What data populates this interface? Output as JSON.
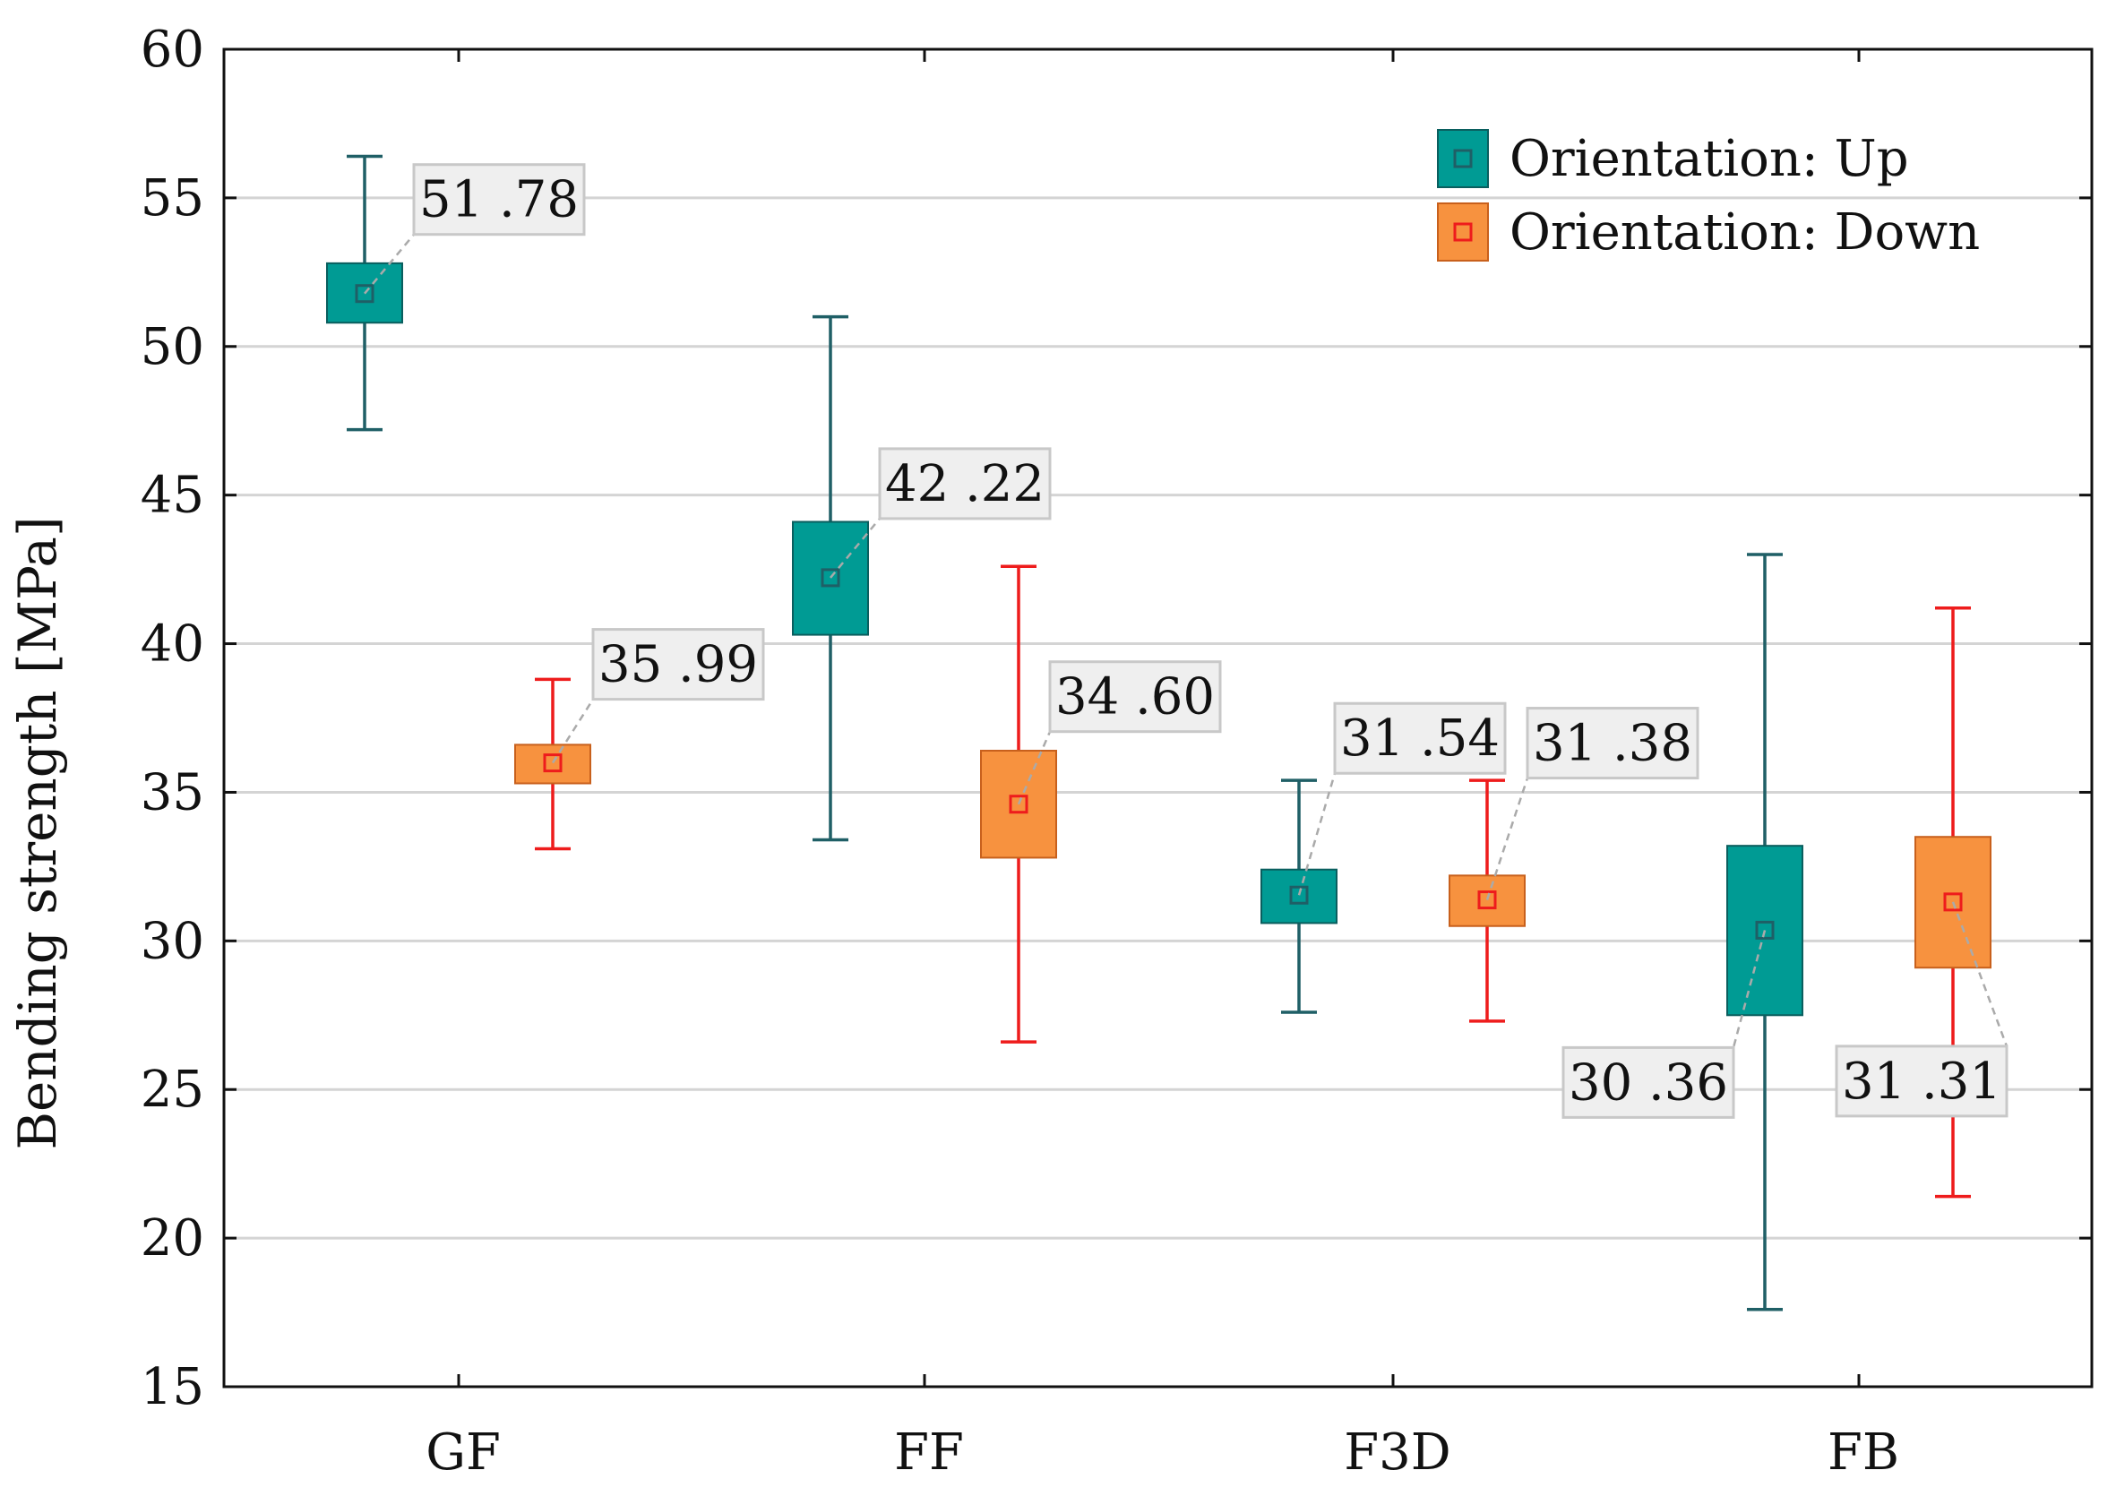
{
  "chart_data": {
    "type": "box",
    "title": "",
    "xlabel": "",
    "ylabel": "Bending strength [MPa]",
    "ylim": [
      15,
      60
    ],
    "yticks": [
      15,
      20,
      25,
      30,
      35,
      40,
      45,
      50,
      55,
      60
    ],
    "grid": "horizontal",
    "categories": [
      "GF",
      "FF",
      "F3D",
      "FB"
    ],
    "legend_position": "top-right",
    "series": [
      {
        "name": "Orientation: Up",
        "box_fill": "#009b94",
        "box_edge": "#0a5e5e",
        "whisker_color": "#1f5f66",
        "marker_color": "#1f5f66",
        "mean": [
          51.78,
          42.22,
          31.54,
          30.36
        ],
        "mean_labels": [
          "51 .78",
          "42 .22",
          "31 .54",
          "30 .36"
        ],
        "box_low": [
          50.8,
          40.3,
          30.6,
          27.5
        ],
        "box_high": [
          52.8,
          44.1,
          32.4,
          33.2
        ],
        "whisker_low": [
          47.2,
          33.4,
          27.6,
          17.6
        ],
        "whisker_high": [
          56.4,
          51.0,
          35.4,
          43.0
        ]
      },
      {
        "name": "Orientation: Down",
        "box_fill": "#f7923f",
        "box_edge": "#c8601c",
        "whisker_color": "#ee1c1c",
        "marker_color": "#ee1c1c",
        "mean": [
          35.99,
          34.6,
          31.38,
          31.31
        ],
        "mean_labels": [
          "35 .99",
          "34 .60",
          "31 .38",
          "31 .31"
        ],
        "box_low": [
          35.3,
          32.8,
          30.5,
          29.1
        ],
        "box_high": [
          36.6,
          36.4,
          32.2,
          33.5
        ],
        "whisker_low": [
          33.1,
          26.6,
          27.3,
          21.4
        ],
        "whisker_high": [
          38.8,
          42.6,
          35.4,
          41.2
        ]
      }
    ]
  }
}
